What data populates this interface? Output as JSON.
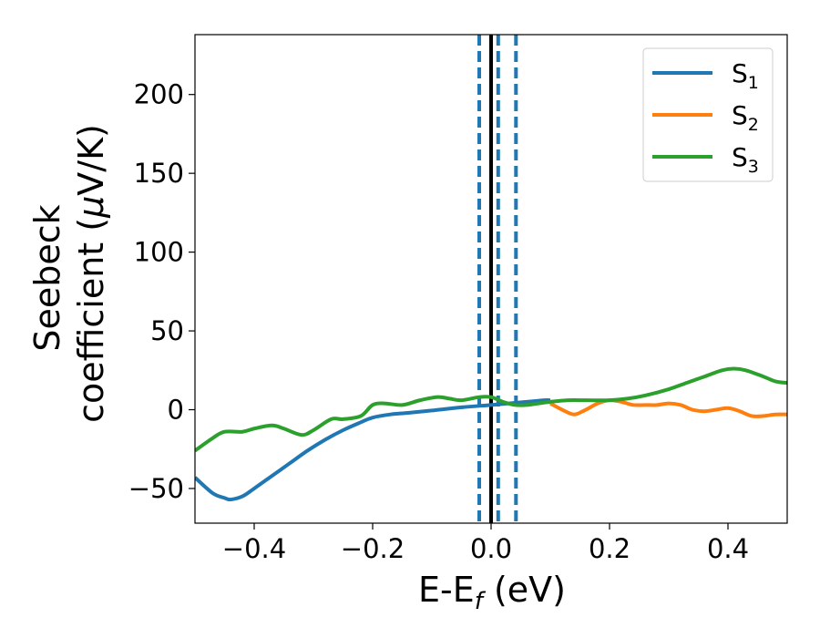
{
  "chart_data": {
    "type": "line",
    "title": "",
    "xlabel": "E-E",
    "xlabel_sub": "f",
    "xlabel_unit": " (eV)",
    "ylabel_line1": "Seebeck",
    "ylabel_line2": "coefficient  (",
    "ylabel_mu": "μ",
    "ylabel_line2_end": "V/K)",
    "xlim": [
      -0.5,
      0.5
    ],
    "ylim": [
      -72,
      238
    ],
    "xticks": [
      -0.4,
      -0.2,
      0.0,
      0.2,
      0.4
    ],
    "xtick_labels": [
      "−0.4",
      "−0.2",
      "0.0",
      "0.2",
      "0.4"
    ],
    "yticks": [
      -50,
      0,
      50,
      100,
      150,
      200
    ],
    "ytick_labels": [
      "−50",
      "0",
      "50",
      "100",
      "150",
      "200"
    ],
    "grid": false,
    "legend_position": "top-right",
    "vlines": [
      {
        "x": -0.02,
        "style": "dashed",
        "color": "#1f77b4"
      },
      {
        "x": 0.0,
        "style": "solid",
        "color": "#000000"
      },
      {
        "x": 0.012,
        "style": "dashed",
        "color": "#1f77b4"
      },
      {
        "x": 0.042,
        "style": "dashed",
        "color": "#1f77b4"
      }
    ],
    "series": [
      {
        "name": "S",
        "sub": "1",
        "color": "#1f77b4",
        "x": [
          -0.5,
          -0.47,
          -0.45,
          -0.44,
          -0.42,
          -0.4,
          -0.37,
          -0.34,
          -0.31,
          -0.28,
          -0.25,
          -0.22,
          -0.2,
          -0.17,
          -0.14,
          -0.1,
          -0.05,
          0.0,
          0.03,
          0.06,
          0.09,
          0.1
        ],
        "y": [
          -43,
          -53,
          -56,
          -57,
          -55,
          -50,
          -42,
          -34,
          -26,
          -19,
          -13,
          -8,
          -5,
          -3,
          -2,
          -0.5,
          1.5,
          3,
          4,
          5,
          6,
          6
        ]
      },
      {
        "name": "S",
        "sub": "2",
        "color": "#ff7f0e",
        "x": [
          0.1,
          0.12,
          0.14,
          0.16,
          0.18,
          0.2,
          0.22,
          0.24,
          0.26,
          0.28,
          0.3,
          0.32,
          0.34,
          0.36,
          0.38,
          0.4,
          0.42,
          0.44,
          0.46,
          0.48,
          0.5
        ],
        "y": [
          4,
          0,
          -3,
          0,
          4,
          6,
          5,
          3,
          3,
          3,
          4,
          3,
          0,
          -1,
          0,
          1,
          -1,
          -4,
          -4,
          -3,
          -3
        ]
      },
      {
        "name": "S",
        "sub": "3",
        "color": "#2ca02c",
        "x": [
          -0.5,
          -0.47,
          -0.45,
          -0.42,
          -0.4,
          -0.37,
          -0.35,
          -0.32,
          -0.3,
          -0.27,
          -0.25,
          -0.22,
          -0.2,
          -0.18,
          -0.15,
          -0.12,
          -0.09,
          -0.07,
          -0.05,
          -0.02,
          0.0,
          0.02,
          0.04,
          0.06,
          0.08,
          0.1,
          0.13,
          0.16,
          0.2,
          0.23,
          0.26,
          0.3,
          0.33,
          0.36,
          0.39,
          0.41,
          0.43,
          0.46,
          0.48,
          0.5
        ],
        "y": [
          -26,
          -18,
          -14,
          -14,
          -12,
          -10,
          -12,
          -16,
          -13,
          -6,
          -6,
          -4,
          3,
          4,
          3,
          6,
          8,
          7,
          6,
          8,
          8,
          5,
          3,
          3,
          4,
          5,
          6,
          6,
          6,
          7,
          9,
          13,
          17,
          21,
          25,
          26,
          25,
          21,
          18,
          17
        ]
      }
    ]
  }
}
